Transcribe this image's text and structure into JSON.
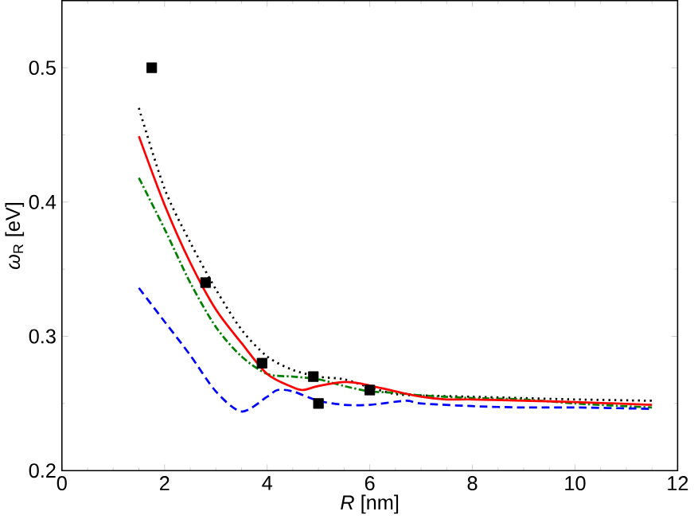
{
  "chart_data": {
    "type": "line",
    "xlabel": "*R* [nm]",
    "ylabel": "*ω*$_{R}$ [eV]",
    "xlim": [
      0,
      12
    ],
    "ylim": [
      0.2,
      0.55
    ],
    "xticks": [
      0,
      2,
      4,
      6,
      8,
      10,
      12
    ],
    "yticks": [
      0.2,
      0.3,
      0.4,
      0.5
    ],
    "grid": false,
    "series": [
      {
        "line_style": "dotted",
        "marker": "none",
        "color": "#000000",
        "x": [
          1.5,
          2,
          2.5,
          3,
          3.5,
          4,
          4.5,
          5,
          5.5,
          6,
          6.5,
          7,
          8,
          9,
          10,
          11.5
        ],
        "values": [
          0.47,
          0.41,
          0.37,
          0.335,
          0.305,
          0.285,
          0.275,
          0.27,
          0.268,
          0.262,
          0.257,
          0.256,
          0.255,
          0.254,
          0.253,
          0.252
        ]
      },
      {
        "line_style": "dashdotted",
        "marker": "none",
        "color": "#008000",
        "x": [
          1.5,
          2,
          2.5,
          3,
          3.5,
          4,
          4.5,
          5,
          5.5,
          6,
          6.5,
          7,
          8,
          9,
          10,
          11.5
        ],
        "values": [
          0.418,
          0.38,
          0.34,
          0.307,
          0.285,
          0.272,
          0.27,
          0.268,
          0.263,
          0.259,
          0.258,
          0.256,
          0.254,
          0.253,
          0.25,
          0.247
        ]
      },
      {
        "line_style": "dashed",
        "marker": "none",
        "color": "#0000ff",
        "x": [
          1.5,
          2,
          2.5,
          3,
          3.5,
          4,
          4.2,
          4.5,
          5,
          5.5,
          6,
          6.7,
          7,
          8,
          9,
          10,
          11.5
        ],
        "values": [
          0.336,
          0.311,
          0.286,
          0.259,
          0.244,
          0.255,
          0.26,
          0.259,
          0.252,
          0.249,
          0.249,
          0.252,
          0.25,
          0.248,
          0.247,
          0.247,
          0.246
        ]
      },
      {
        "line_style": "solid",
        "marker": "none",
        "color": "#ff0000",
        "x": [
          1.5,
          2,
          2.5,
          3,
          3.5,
          4,
          4.5,
          4.7,
          5,
          5.5,
          5.8,
          6.5,
          7,
          7.5,
          8,
          9,
          10,
          11.5
        ],
        "values": [
          0.449,
          0.398,
          0.355,
          0.32,
          0.295,
          0.272,
          0.262,
          0.26,
          0.263,
          0.266,
          0.265,
          0.259,
          0.255,
          0.253,
          0.253,
          0.252,
          0.251,
          0.249
        ]
      },
      {
        "type": "scatter",
        "marker": "square",
        "color": "#000000",
        "x": [
          1.75,
          2.8,
          3.9,
          4.9,
          5.0,
          6.0
        ],
        "values": [
          0.5,
          0.34,
          0.28,
          0.27,
          0.25,
          0.26
        ]
      }
    ]
  }
}
